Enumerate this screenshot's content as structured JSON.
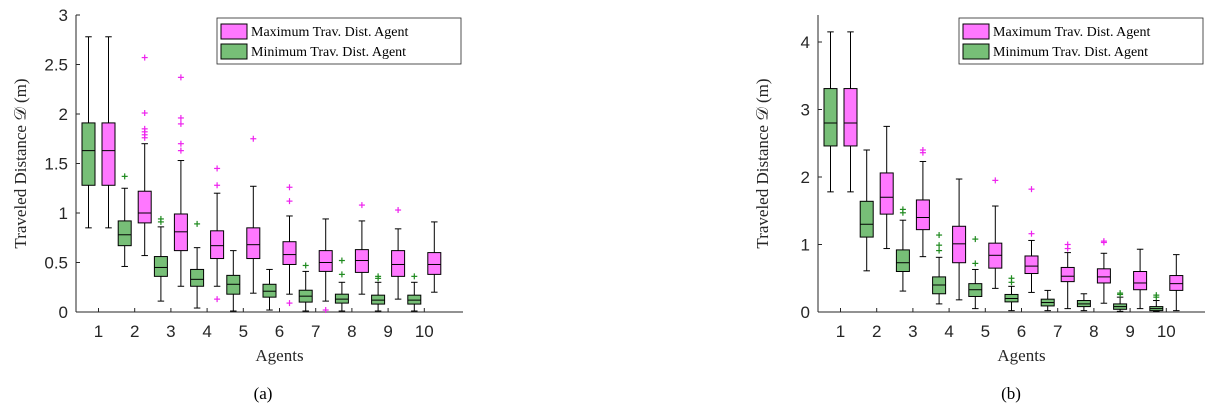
{
  "colors": {
    "max": "#ff77ff",
    "min": "#77bf77",
    "max_outlier": "#ee22ee",
    "min_outlier": "#1e8a1e"
  },
  "chart_data": [
    {
      "type": "boxplot",
      "caption": "(a)",
      "xlabel": "Agents",
      "ylabel": "Traveled Distance 𝒟 (m)",
      "ylim": [
        0,
        3
      ],
      "yticks": [
        0,
        0.5,
        1,
        1.5,
        2,
        2.5,
        3
      ],
      "ytick_labels": [
        "0",
        "0.5",
        "1",
        "1.5",
        "2",
        "2.5",
        "3"
      ],
      "categories": [
        "1",
        "2",
        "3",
        "4",
        "5",
        "6",
        "7",
        "8",
        "9",
        "10"
      ],
      "legend": [
        "Maximum Trav. Dist. Agent",
        "Minimum Trav. Dist. Agent"
      ],
      "legend_position": "top-right",
      "series": [
        {
          "name": "Maximum Trav. Dist. Agent",
          "boxes": [
            {
              "lw": 0.85,
              "q1": 1.28,
              "med": 1.63,
              "q3": 1.91,
              "uw": 2.78,
              "out": []
            },
            {
              "lw": 0.57,
              "q1": 0.9,
              "med": 1.0,
              "q3": 1.22,
              "uw": 1.7,
              "out": [
                1.76,
                1.79,
                1.82,
                1.85,
                2.01,
                2.57
              ]
            },
            {
              "lw": 0.26,
              "q1": 0.62,
              "med": 0.81,
              "q3": 0.99,
              "uw": 1.53,
              "out": [
                1.63,
                1.7,
                1.9,
                1.96,
                2.37
              ]
            },
            {
              "lw": 0.26,
              "q1": 0.54,
              "med": 0.67,
              "q3": 0.82,
              "uw": 1.2,
              "out": [
                0.13,
                1.28,
                1.45
              ]
            },
            {
              "lw": 0.19,
              "q1": 0.54,
              "med": 0.68,
              "q3": 0.85,
              "uw": 1.27,
              "out": [
                1.75
              ]
            },
            {
              "lw": 0.18,
              "q1": 0.48,
              "med": 0.58,
              "q3": 0.71,
              "uw": 0.97,
              "out": [
                0.09,
                1.12,
                1.26
              ]
            },
            {
              "lw": 0.11,
              "q1": 0.41,
              "med": 0.5,
              "q3": 0.62,
              "uw": 0.94,
              "out": [
                0.02
              ]
            },
            {
              "lw": 0.18,
              "q1": 0.4,
              "med": 0.52,
              "q3": 0.63,
              "uw": 0.92,
              "out": [
                1.08
              ]
            },
            {
              "lw": 0.13,
              "q1": 0.36,
              "med": 0.48,
              "q3": 0.62,
              "uw": 0.84,
              "out": [
                1.03
              ]
            },
            {
              "lw": 0.2,
              "q1": 0.38,
              "med": 0.48,
              "q3": 0.6,
              "uw": 0.91,
              "out": []
            }
          ]
        },
        {
          "name": "Minimum Trav. Dist. Agent",
          "boxes": [
            {
              "lw": 0.85,
              "q1": 1.28,
              "med": 1.63,
              "q3": 1.91,
              "uw": 2.78,
              "out": []
            },
            {
              "lw": 0.46,
              "q1": 0.67,
              "med": 0.78,
              "q3": 0.92,
              "uw": 1.25,
              "out": [
                1.37
              ]
            },
            {
              "lw": 0.11,
              "q1": 0.36,
              "med": 0.45,
              "q3": 0.56,
              "uw": 0.86,
              "out": [
                0.91,
                0.94
              ]
            },
            {
              "lw": 0.04,
              "q1": 0.26,
              "med": 0.33,
              "q3": 0.43,
              "uw": 0.65,
              "out": [
                0.89
              ]
            },
            {
              "lw": 0.01,
              "q1": 0.18,
              "med": 0.28,
              "q3": 0.37,
              "uw": 0.62,
              "out": []
            },
            {
              "lw": 0.02,
              "q1": 0.15,
              "med": 0.21,
              "q3": 0.28,
              "uw": 0.43,
              "out": []
            },
            {
              "lw": 0.01,
              "q1": 0.1,
              "med": 0.16,
              "q3": 0.22,
              "uw": 0.41,
              "out": [
                0.47
              ]
            },
            {
              "lw": 0.01,
              "q1": 0.09,
              "med": 0.13,
              "q3": 0.18,
              "uw": 0.3,
              "out": [
                0.38,
                0.52
              ]
            },
            {
              "lw": 0.01,
              "q1": 0.08,
              "med": 0.12,
              "q3": 0.17,
              "uw": 0.3,
              "out": [
                0.34,
                0.36
              ]
            },
            {
              "lw": 0.01,
              "q1": 0.08,
              "med": 0.12,
              "q3": 0.17,
              "uw": 0.3,
              "out": [
                0.36
              ]
            }
          ]
        }
      ]
    },
    {
      "type": "boxplot",
      "caption": "(b)",
      "xlabel": "Agents",
      "ylabel": "Traveled Distance 𝒟 (m)",
      "ylim": [
        0,
        4.4
      ],
      "yticks": [
        0,
        1,
        2,
        3,
        4
      ],
      "ytick_labels": [
        "0",
        "1",
        "2",
        "3",
        "4"
      ],
      "categories": [
        "1",
        "2",
        "3",
        "4",
        "5",
        "6",
        "7",
        "8",
        "9",
        "10"
      ],
      "legend": [
        "Maximum Trav. Dist. Agent",
        "Minimum Trav. Dist. Agent"
      ],
      "legend_position": "top-right",
      "series": [
        {
          "name": "Maximum Trav. Dist. Agent",
          "boxes": [
            {
              "lw": 1.78,
              "q1": 2.46,
              "med": 2.8,
              "q3": 3.31,
              "uw": 4.15,
              "out": []
            },
            {
              "lw": 0.94,
              "q1": 1.45,
              "med": 1.7,
              "q3": 2.06,
              "uw": 2.75,
              "out": []
            },
            {
              "lw": 0.82,
              "q1": 1.22,
              "med": 1.4,
              "q3": 1.66,
              "uw": 2.23,
              "out": [
                2.36,
                2.4
              ]
            },
            {
              "lw": 0.18,
              "q1": 0.73,
              "med": 1.01,
              "q3": 1.27,
              "uw": 1.97,
              "out": []
            },
            {
              "lw": 0.35,
              "q1": 0.65,
              "med": 0.84,
              "q3": 1.02,
              "uw": 1.57,
              "out": [
                1.95
              ]
            },
            {
              "lw": 0.29,
              "q1": 0.57,
              "med": 0.68,
              "q3": 0.83,
              "uw": 1.06,
              "out": [
                1.16,
                1.82
              ]
            },
            {
              "lw": 0.05,
              "q1": 0.45,
              "med": 0.53,
              "q3": 0.66,
              "uw": 0.88,
              "out": [
                0.94,
                1.0
              ]
            },
            {
              "lw": 0.13,
              "q1": 0.43,
              "med": 0.52,
              "q3": 0.64,
              "uw": 0.87,
              "out": [
                1.03,
                1.05
              ]
            },
            {
              "lw": 0.05,
              "q1": 0.33,
              "med": 0.43,
              "q3": 0.6,
              "uw": 0.93,
              "out": []
            },
            {
              "lw": 0.02,
              "q1": 0.32,
              "med": 0.42,
              "q3": 0.54,
              "uw": 0.85,
              "out": []
            }
          ]
        },
        {
          "name": "Minimum Trav. Dist. Agent",
          "boxes": [
            {
              "lw": 1.78,
              "q1": 2.46,
              "med": 2.8,
              "q3": 3.31,
              "uw": 4.15,
              "out": []
            },
            {
              "lw": 0.61,
              "q1": 1.11,
              "med": 1.3,
              "q3": 1.64,
              "uw": 2.4,
              "out": []
            },
            {
              "lw": 0.31,
              "q1": 0.6,
              "med": 0.73,
              "q3": 0.92,
              "uw": 1.36,
              "out": [
                1.47,
                1.52
              ]
            },
            {
              "lw": 0.12,
              "q1": 0.27,
              "med": 0.4,
              "q3": 0.52,
              "uw": 0.81,
              "out": [
                0.91,
                0.99,
                1.14
              ]
            },
            {
              "lw": 0.05,
              "q1": 0.23,
              "med": 0.33,
              "q3": 0.42,
              "uw": 0.63,
              "out": [
                0.72,
                1.08
              ]
            },
            {
              "lw": 0.02,
              "q1": 0.15,
              "med": 0.2,
              "q3": 0.26,
              "uw": 0.38,
              "out": [
                0.44,
                0.5
              ]
            },
            {
              "lw": 0.02,
              "q1": 0.09,
              "med": 0.14,
              "q3": 0.19,
              "uw": 0.32,
              "out": []
            },
            {
              "lw": 0.02,
              "q1": 0.08,
              "med": 0.12,
              "q3": 0.17,
              "uw": 0.27,
              "out": []
            },
            {
              "lw": 0.01,
              "q1": 0.04,
              "med": 0.08,
              "q3": 0.12,
              "uw": 0.22,
              "out": [
                0.26,
                0.28
              ]
            },
            {
              "lw": 0.01,
              "q1": 0.02,
              "med": 0.05,
              "q3": 0.08,
              "uw": 0.17,
              "out": [
                0.22,
                0.25
              ]
            }
          ]
        }
      ]
    }
  ]
}
